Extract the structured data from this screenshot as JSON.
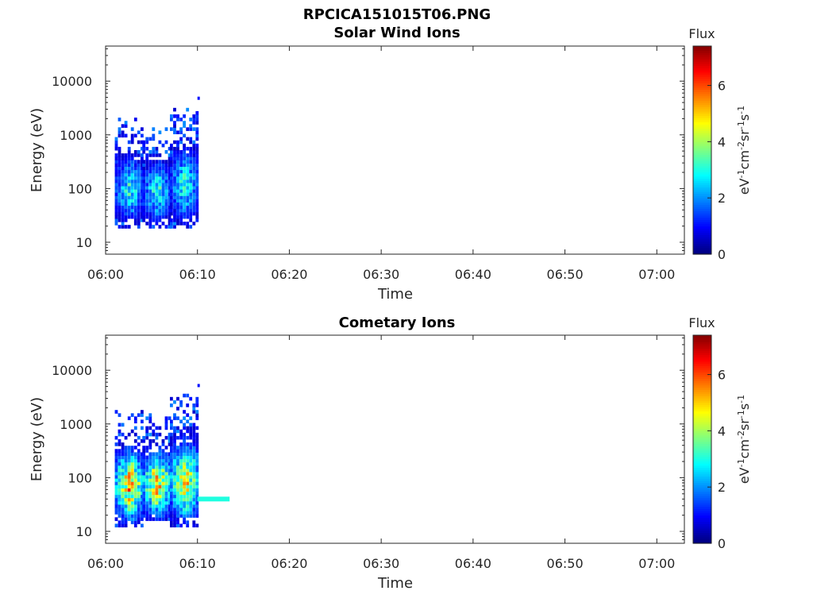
{
  "title": "RPCICA151015T06.PNG",
  "chart_data": [
    {
      "type": "heatmap",
      "title": "Solar Wind Ions",
      "xlabel": "Time",
      "ylabel": "Energy (eV)",
      "x_ticks": [
        "06:00",
        "06:10",
        "06:20",
        "06:30",
        "06:40",
        "06:50",
        "07:00"
      ],
      "xlim": [
        "06:00",
        "07:03"
      ],
      "y_scale": "log",
      "y_ticks": [
        "10",
        "100",
        "1000",
        "10000"
      ],
      "ylim": [
        6,
        45000
      ],
      "colorbar": {
        "title": "Flux",
        "label": "eV-1cm-2sr-1s-1",
        "ticks": [
          "0",
          "2",
          "4",
          "6"
        ],
        "range": [
          0,
          7.4
        ],
        "colormap": "jet"
      },
      "bursts": [
        {
          "start": "06:01",
          "end": "06:04",
          "e_min": 18,
          "e_max": 1900,
          "peak_flux": 3.5
        },
        {
          "start": "06:04",
          "end": "06:07",
          "e_min": 18,
          "e_max": 1500,
          "peak_flux": 3.5
        },
        {
          "start": "06:07",
          "end": "06:10",
          "e_min": 18,
          "e_max": 3300,
          "peak_flux": 3.5
        }
      ],
      "isolated_points": [
        {
          "time": "06:10",
          "energy": 4800,
          "flux": 1.0
        }
      ]
    },
    {
      "type": "heatmap",
      "title": "Cometary Ions",
      "xlabel": "Time",
      "ylabel": "Energy (eV)",
      "x_ticks": [
        "06:00",
        "06:10",
        "06:20",
        "06:30",
        "06:40",
        "06:50",
        "07:00"
      ],
      "xlim": [
        "06:00",
        "07:03"
      ],
      "y_scale": "log",
      "y_ticks": [
        "10",
        "100",
        "1000",
        "10000"
      ],
      "ylim": [
        6,
        45000
      ],
      "colorbar": {
        "title": "Flux",
        "label": "eV-1cm-2sr-1s-1",
        "ticks": [
          "0",
          "2",
          "4",
          "6"
        ],
        "range": [
          0,
          7.4
        ],
        "colormap": "jet"
      },
      "bursts": [
        {
          "start": "06:01",
          "end": "06:04",
          "e_min": 12,
          "e_max": 1700,
          "peak_flux": 6.0
        },
        {
          "start": "06:04",
          "end": "06:07",
          "e_min": 15,
          "e_max": 1400,
          "peak_flux": 6.0
        },
        {
          "start": "06:07",
          "end": "06:10",
          "e_min": 12,
          "e_max": 3200,
          "peak_flux": 5.5
        }
      ],
      "bands": [
        {
          "start": "06:10",
          "end": "06:13.5",
          "energy": 40,
          "flux": 3.0
        }
      ],
      "isolated_points": [
        {
          "time": "06:10",
          "energy": 5200,
          "flux": 1.0
        }
      ]
    }
  ]
}
